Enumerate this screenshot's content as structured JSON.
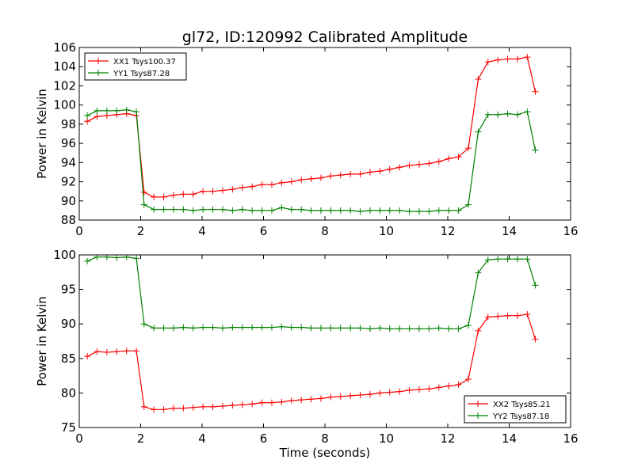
{
  "figure": {
    "title": "gl72, ID:120992 Calibrated Amplitude",
    "xlabel": "Time (seconds)"
  },
  "chart_data": [
    {
      "type": "line",
      "title": "gl72, ID:120992 Calibrated Amplitude",
      "xlabel": "",
      "ylabel": "Power in Kelvin",
      "xlim": [
        0,
        16
      ],
      "ylim": [
        88,
        106
      ],
      "xticks": [
        0,
        2,
        4,
        6,
        8,
        10,
        12,
        14,
        16
      ],
      "yticks": [
        88,
        90,
        92,
        94,
        96,
        98,
        100,
        102,
        104,
        106
      ],
      "grid": false,
      "legend": "top-left",
      "x": [
        0.26,
        0.58,
        0.9,
        1.22,
        1.54,
        1.86,
        2.11,
        2.43,
        2.75,
        3.07,
        3.39,
        3.71,
        4.03,
        4.35,
        4.67,
        4.99,
        5.31,
        5.63,
        5.95,
        6.27,
        6.59,
        6.91,
        7.23,
        7.55,
        7.87,
        8.19,
        8.51,
        8.83,
        9.15,
        9.47,
        9.79,
        10.11,
        10.43,
        10.75,
        11.07,
        11.39,
        11.71,
        12.03,
        12.35,
        12.67,
        12.99,
        13.31,
        13.63,
        13.95,
        14.27,
        14.59,
        14.85
      ],
      "series": [
        {
          "name": "XX1 Tsys100.37",
          "color": "#ff0000",
          "values": [
            98.3,
            98.8,
            98.9,
            99.0,
            99.1,
            98.9,
            90.9,
            90.4,
            90.4,
            90.6,
            90.7,
            90.7,
            91.0,
            91.0,
            91.1,
            91.2,
            91.4,
            91.5,
            91.7,
            91.7,
            91.9,
            92.0,
            92.2,
            92.3,
            92.4,
            92.6,
            92.7,
            92.8,
            92.8,
            93.0,
            93.1,
            93.3,
            93.5,
            93.7,
            93.8,
            93.9,
            94.1,
            94.4,
            94.6,
            95.5,
            102.7,
            104.5,
            104.7,
            104.8,
            104.8,
            105.0,
            101.4
          ]
        },
        {
          "name": "YY1 Tsys87.28",
          "color": "#008000",
          "values": [
            98.9,
            99.4,
            99.4,
            99.4,
            99.5,
            99.3,
            89.6,
            89.1,
            89.1,
            89.1,
            89.1,
            89.0,
            89.1,
            89.1,
            89.1,
            89.0,
            89.1,
            89.0,
            89.0,
            89.0,
            89.3,
            89.1,
            89.1,
            89.0,
            89.0,
            89.0,
            89.0,
            89.0,
            88.9,
            89.0,
            89.0,
            89.0,
            89.0,
            88.9,
            88.9,
            88.9,
            89.0,
            89.0,
            89.0,
            89.6,
            97.2,
            99.0,
            99.0,
            99.1,
            99.0,
            99.3,
            95.3
          ]
        }
      ]
    },
    {
      "type": "line",
      "title": "",
      "xlabel": "Time (seconds)",
      "ylabel": "Power in Kelvin",
      "xlim": [
        0,
        16
      ],
      "ylim": [
        75,
        100
      ],
      "xticks": [
        0,
        2,
        4,
        6,
        8,
        10,
        12,
        14,
        16
      ],
      "yticks": [
        75,
        80,
        85,
        90,
        95,
        100
      ],
      "grid": false,
      "legend": "bottom-right",
      "x": [
        0.26,
        0.58,
        0.9,
        1.22,
        1.54,
        1.86,
        2.11,
        2.43,
        2.75,
        3.07,
        3.39,
        3.71,
        4.03,
        4.35,
        4.67,
        4.99,
        5.31,
        5.63,
        5.95,
        6.27,
        6.59,
        6.91,
        7.23,
        7.55,
        7.87,
        8.19,
        8.51,
        8.83,
        9.15,
        9.47,
        9.79,
        10.11,
        10.43,
        10.75,
        11.07,
        11.39,
        11.71,
        12.03,
        12.35,
        12.67,
        12.99,
        13.31,
        13.63,
        13.95,
        14.27,
        14.59,
        14.85
      ],
      "series": [
        {
          "name": "XX2 Tsys85.21",
          "color": "#ff0000",
          "values": [
            85.3,
            86.0,
            85.9,
            86.0,
            86.1,
            86.1,
            78.0,
            77.6,
            77.6,
            77.8,
            77.8,
            77.9,
            78.0,
            78.0,
            78.1,
            78.2,
            78.3,
            78.4,
            78.6,
            78.6,
            78.7,
            78.9,
            79.0,
            79.1,
            79.2,
            79.4,
            79.5,
            79.6,
            79.7,
            79.8,
            80.0,
            80.1,
            80.2,
            80.4,
            80.5,
            80.6,
            80.8,
            81.0,
            81.2,
            82.0,
            89.0,
            91.0,
            91.1,
            91.2,
            91.2,
            91.4,
            87.8
          ]
        },
        {
          "name": "YY2 Tsys87.18",
          "color": "#008000",
          "values": [
            99.1,
            99.7,
            99.7,
            99.6,
            99.7,
            99.5,
            90.0,
            89.4,
            89.4,
            89.4,
            89.5,
            89.4,
            89.5,
            89.5,
            89.4,
            89.5,
            89.5,
            89.5,
            89.5,
            89.5,
            89.6,
            89.5,
            89.5,
            89.4,
            89.4,
            89.4,
            89.4,
            89.4,
            89.4,
            89.3,
            89.4,
            89.3,
            89.3,
            89.3,
            89.3,
            89.3,
            89.4,
            89.3,
            89.3,
            89.8,
            97.4,
            99.3,
            99.4,
            99.4,
            99.4,
            99.4,
            95.6
          ]
        }
      ]
    }
  ]
}
